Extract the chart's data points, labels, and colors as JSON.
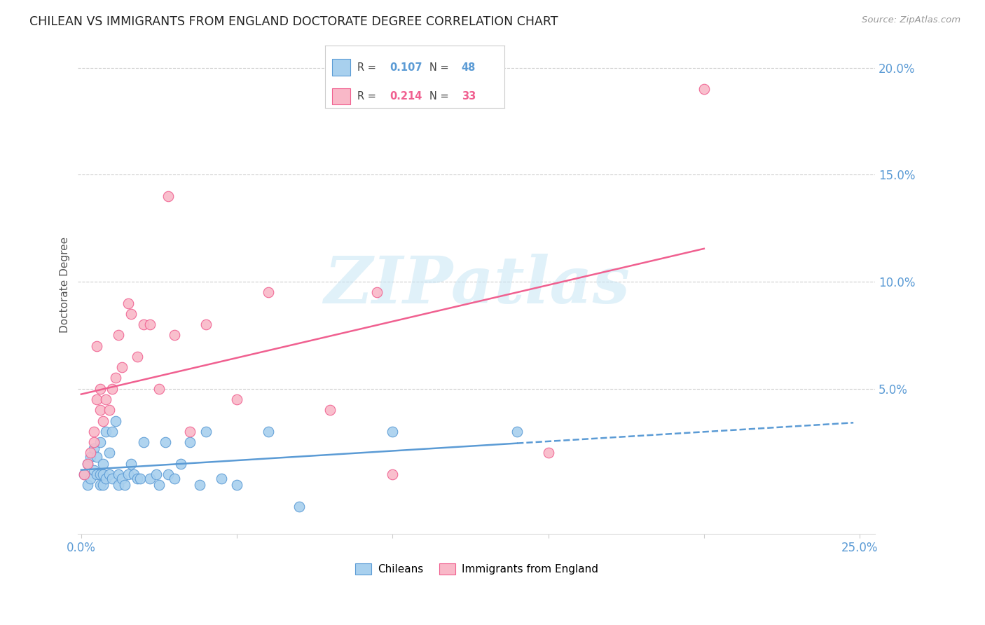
{
  "title": "CHILEAN VS IMMIGRANTS FROM ENGLAND DOCTORATE DEGREE CORRELATION CHART",
  "source": "Source: ZipAtlas.com",
  "ylabel": "Doctorate Degree",
  "chilean_color": "#A8D0EE",
  "england_color": "#F9B8C8",
  "chilean_edge_color": "#5B9BD5",
  "england_edge_color": "#F06090",
  "chilean_line_color": "#5B9BD5",
  "england_line_color": "#F06090",
  "right_ytick_labels": [
    "5.0%",
    "10.0%",
    "15.0%",
    "20.0%"
  ],
  "right_ytick_vals": [
    0.05,
    0.1,
    0.15,
    0.2
  ],
  "xmin": -0.001,
  "xmax": 0.255,
  "ymin": -0.018,
  "ymax": 0.215,
  "watermark_fontsize": 68,
  "chilean_R": "0.107",
  "chilean_N": "48",
  "england_R": "0.214",
  "england_N": "33",
  "chilean_x": [
    0.001,
    0.002,
    0.002,
    0.003,
    0.003,
    0.004,
    0.004,
    0.005,
    0.005,
    0.006,
    0.006,
    0.006,
    0.007,
    0.007,
    0.007,
    0.008,
    0.008,
    0.009,
    0.009,
    0.01,
    0.01,
    0.011,
    0.012,
    0.012,
    0.013,
    0.014,
    0.015,
    0.016,
    0.017,
    0.018,
    0.019,
    0.02,
    0.022,
    0.024,
    0.025,
    0.027,
    0.028,
    0.03,
    0.032,
    0.035,
    0.038,
    0.04,
    0.045,
    0.05,
    0.06,
    0.07,
    0.1,
    0.14
  ],
  "chilean_y": [
    0.01,
    0.015,
    0.005,
    0.008,
    0.018,
    0.012,
    0.022,
    0.01,
    0.018,
    0.025,
    0.01,
    0.005,
    0.005,
    0.01,
    0.015,
    0.03,
    0.008,
    0.02,
    0.01,
    0.03,
    0.008,
    0.035,
    0.01,
    0.005,
    0.008,
    0.005,
    0.01,
    0.015,
    0.01,
    0.008,
    0.008,
    0.025,
    0.008,
    0.01,
    0.005,
    0.025,
    0.01,
    0.008,
    0.015,
    0.025,
    0.005,
    0.03,
    0.008,
    0.005,
    0.03,
    -0.005,
    0.03,
    0.03
  ],
  "england_x": [
    0.001,
    0.002,
    0.003,
    0.004,
    0.004,
    0.005,
    0.005,
    0.006,
    0.006,
    0.007,
    0.008,
    0.009,
    0.01,
    0.011,
    0.012,
    0.013,
    0.015,
    0.016,
    0.018,
    0.02,
    0.022,
    0.025,
    0.028,
    0.03,
    0.035,
    0.04,
    0.05,
    0.06,
    0.08,
    0.095,
    0.1,
    0.15,
    0.2
  ],
  "england_y": [
    0.01,
    0.015,
    0.02,
    0.03,
    0.025,
    0.045,
    0.07,
    0.05,
    0.04,
    0.035,
    0.045,
    0.04,
    0.05,
    0.055,
    0.075,
    0.06,
    0.09,
    0.085,
    0.065,
    0.08,
    0.08,
    0.05,
    0.14,
    0.075,
    0.03,
    0.08,
    0.045,
    0.095,
    0.04,
    0.095,
    0.01,
    0.02,
    0.19
  ]
}
